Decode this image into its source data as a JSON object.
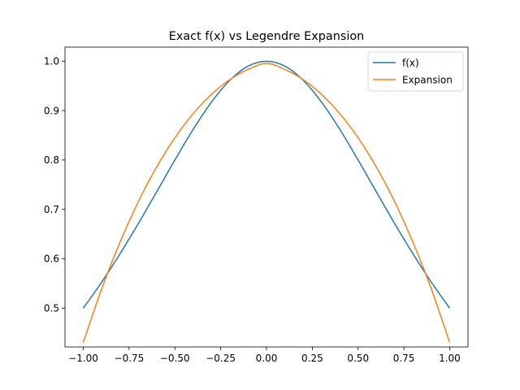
{
  "chart_data": {
    "type": "line",
    "title": "Exact f(x) vs Legendre Expansion",
    "xlabel": "",
    "ylabel": "",
    "xlim": [
      -1.1,
      1.1
    ],
    "ylim": [
      0.4215,
      1.0285
    ],
    "xticks": [
      -1.0,
      -0.75,
      -0.5,
      -0.25,
      0.0,
      0.25,
      0.5,
      0.75,
      1.0
    ],
    "xtick_labels": [
      "−1.00",
      "−0.75",
      "−0.50",
      "−0.25",
      "0.00",
      "0.25",
      "0.50",
      "0.75",
      "1.00"
    ],
    "yticks": [
      0.5,
      0.6,
      0.7,
      0.8,
      0.9,
      1.0
    ],
    "ytick_labels": [
      "0.5",
      "0.6",
      "0.7",
      "0.8",
      "0.9",
      "1.0"
    ],
    "grid": false,
    "legend": "top-right",
    "x": [
      -1.0,
      -0.9,
      -0.8,
      -0.7,
      -0.6,
      -0.5,
      -0.4,
      -0.3,
      -0.2,
      -0.1,
      0.0,
      0.1,
      0.2,
      0.3,
      0.4,
      0.5,
      0.6,
      0.7,
      0.8,
      0.9,
      1.0
    ],
    "series": [
      {
        "name": "f(x)",
        "color": "#1f77b4",
        "values": [
          0.5,
          0.5525,
          0.6098,
          0.6711,
          0.7353,
          0.8,
          0.8621,
          0.9174,
          0.9615,
          0.9901,
          1.0,
          0.9901,
          0.9615,
          0.9174,
          0.8621,
          0.8,
          0.7353,
          0.6711,
          0.6098,
          0.5525,
          0.5
        ]
      },
      {
        "name": "Expansion",
        "color": "#ff7f0e",
        "values": [
          0.4306,
          0.5386,
          0.6332,
          0.7153,
          0.7856,
          0.8449,
          0.8939,
          0.933,
          0.9628,
          0.9835,
          0.9955,
          0.9835,
          0.9628,
          0.933,
          0.8939,
          0.8449,
          0.7856,
          0.7153,
          0.6332,
          0.5386,
          0.4306
        ]
      }
    ]
  }
}
